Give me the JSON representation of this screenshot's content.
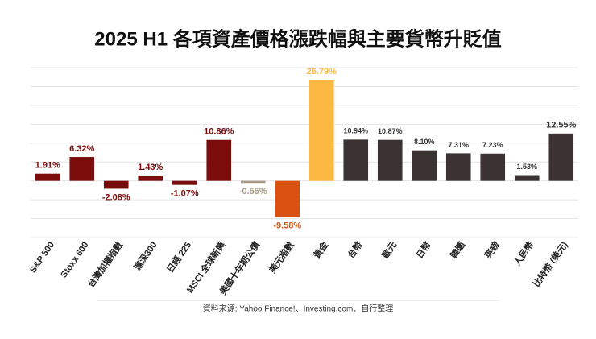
{
  "chart_data": {
    "type": "bar",
    "title": "2025 H1 各項資產價格漲跌幅與主要貨幣升貶值",
    "categories": [
      "S&P 500",
      "Stoxx 600",
      "台灣加權指數",
      "滬深300",
      "日經 225",
      "MSCI 全球新興",
      "美國十年期公債",
      "美元指數",
      "黃金",
      "台幣",
      "歐元",
      "日幣",
      "韓圜",
      "英鎊",
      "人民幣",
      "比特幣 (美元)"
    ],
    "values": [
      1.91,
      6.32,
      -2.08,
      1.43,
      -1.07,
      10.86,
      -0.55,
      -9.58,
      26.79,
      10.94,
      10.87,
      8.1,
      7.31,
      7.23,
      1.53,
      12.55
    ],
    "value_labels": [
      "1.91%",
      "6.32%",
      "-2.08%",
      "1.43%",
      "-1.07%",
      "10.86%",
      "-0.55%",
      "-9.58%",
      "26.79%",
      "10.94%",
      "10.87%",
      "8.10%",
      "7.31%",
      "7.23%",
      "1.53%",
      "12.55%"
    ],
    "colors": [
      "#7a0c0c",
      "#7a0c0c",
      "#7a0c0c",
      "#7a0c0c",
      "#7a0c0c",
      "#7a0c0c",
      "#a99b86",
      "#d9520f",
      "#fbb843",
      "#3b3331",
      "#3b3331",
      "#3b3331",
      "#3b3331",
      "#3b3331",
      "#3b3331",
      "#3b3331"
    ],
    "ylim": [
      -15,
      30
    ],
    "yticks": [
      -15,
      -10,
      -5,
      0,
      5,
      10,
      15,
      20,
      25,
      30
    ],
    "grid": true,
    "footnote": "資料來源: Yahoo Finance!、Investing.com、自行整理"
  }
}
